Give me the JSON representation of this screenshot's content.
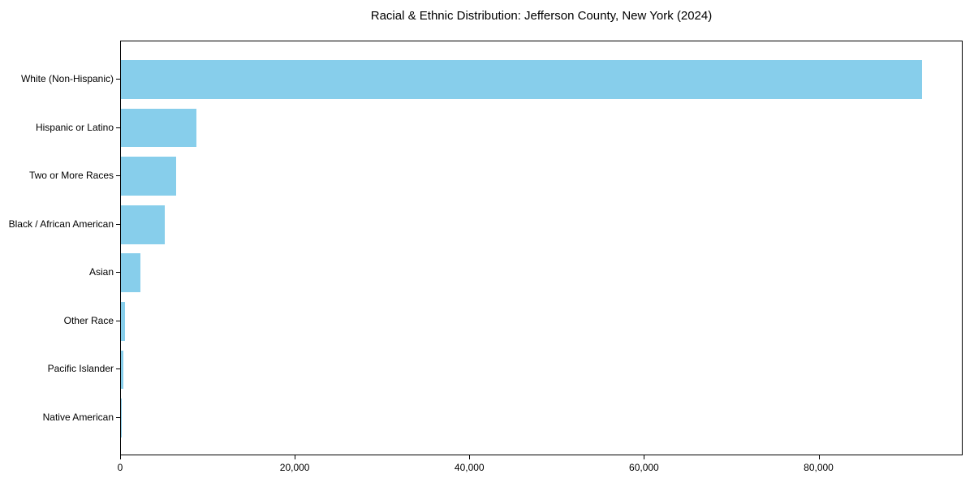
{
  "title": "Racial & Ethnic Distribution: Jefferson County, New York (2024)",
  "chart_data": {
    "type": "bar",
    "orientation": "horizontal",
    "title": "Racial & Ethnic Distribution: Jefferson County, New York (2024)",
    "categories": [
      "White (Non-Hispanic)",
      "Hispanic or Latino",
      "Two or More Races",
      "Black / African American",
      "Asian",
      "Other Race",
      "Pacific Islander",
      "Native American"
    ],
    "values": [
      91800,
      8640,
      6320,
      5020,
      2230,
      440,
      310,
      90
    ],
    "xlabel": "",
    "ylabel": "",
    "xlim": [
      0,
      96500
    ],
    "x_ticks": [
      0,
      20000,
      40000,
      60000,
      80000
    ],
    "x_tick_labels": [
      "0",
      "20,000",
      "40,000",
      "60,000",
      "80,000"
    ],
    "grid": false,
    "legend": null,
    "bar_color": "#87CEEB",
    "spine_color": "#000000",
    "text_color": "#000000",
    "background_color": "#FFFFFF"
  }
}
